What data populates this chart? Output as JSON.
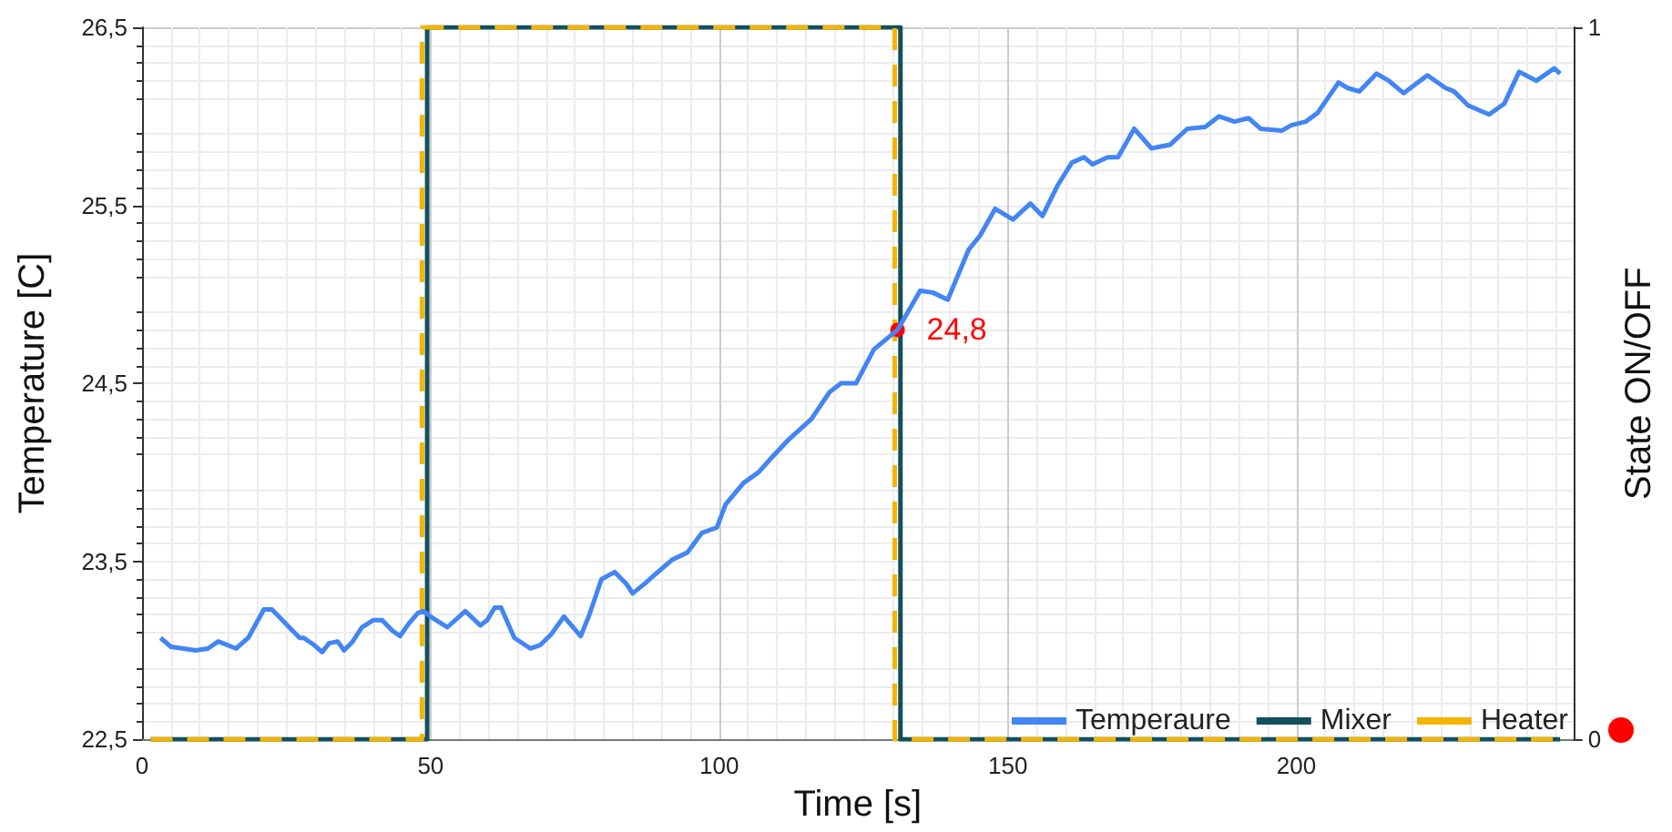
{
  "chart_data": {
    "type": "line",
    "xlabel": "Time [s]",
    "ylabel": "Temperature [C]",
    "y2label": "State ON/OFF",
    "xlim": [
      0,
      248
    ],
    "xticks": [
      0,
      50,
      100,
      150,
      200
    ],
    "ylim": [
      22.5,
      26.5
    ],
    "yticks": [
      {
        "value": 22.5,
        "label": "22,5"
      },
      {
        "value": 23.5,
        "label": "23,5"
      },
      {
        "value": 24.5,
        "label": "24,5"
      },
      {
        "value": 25.5,
        "label": "25,5"
      },
      {
        "value": 26.5,
        "label": "26,5"
      }
    ],
    "y2lim": [
      0,
      1
    ],
    "y2ticks": [
      0,
      1
    ],
    "grid": true,
    "legend": "bottom right",
    "marker": "none",
    "annotations": [
      {
        "text": "24,8",
        "x": 130.9,
        "y": 24.8
      }
    ],
    "series": [
      {
        "name": "Temperaure",
        "color": "#4285f4",
        "line_style": "solid",
        "x": [
          3.2,
          5.0,
          9.3,
          11.4,
          13.2,
          16.3,
          18.4,
          21.1,
          22.5,
          27.3,
          28.0,
          29.8,
          31.2,
          32.4,
          33.9,
          35.0,
          36.5,
          38.1,
          40.1,
          41.6,
          43.4,
          44.7,
          46.2,
          47.8,
          48.8,
          50.4,
          52.9,
          56.0,
          58.6,
          59.8,
          61.1,
          62.2,
          64.5,
          67.3,
          69.0,
          70.9,
          73.1,
          76.0,
          77.5,
          79.6,
          81.9,
          84.0,
          85.0,
          87.3,
          88.3,
          91.9,
          94.5,
          97.0,
          99.6,
          101.1,
          104.2,
          106.8,
          109.3,
          111.9,
          116.0,
          119.1,
          121.1,
          123.7,
          126.8,
          130.9,
          134.8,
          137.0,
          139.6,
          143.2,
          145.2,
          147.8,
          150.9,
          153.9,
          156.0,
          158.6,
          161.1,
          163.2,
          164.7,
          167.3,
          169.1,
          171.9,
          174.9,
          178.1,
          181.1,
          184.2,
          186.6,
          189.3,
          191.7,
          193.8,
          197.5,
          199.1,
          201.6,
          203.7,
          207.3,
          208.8,
          210.9,
          213.9,
          216.0,
          218.6,
          222.7,
          225.8,
          227.3,
          229.8,
          233.4,
          236.0,
          238.6,
          241.6,
          244.7,
          245.7
        ],
        "values": [
          23.07,
          23.02,
          23.0,
          23.01,
          23.05,
          23.01,
          23.07,
          23.23,
          23.23,
          23.07,
          23.07,
          23.03,
          22.99,
          23.04,
          23.05,
          23.0,
          23.05,
          23.13,
          23.17,
          23.17,
          23.11,
          23.08,
          23.15,
          23.21,
          23.22,
          23.18,
          23.13,
          23.22,
          23.14,
          23.17,
          23.24,
          23.24,
          23.07,
          23.01,
          23.03,
          23.09,
          23.19,
          23.08,
          23.2,
          23.4,
          23.44,
          23.37,
          23.32,
          23.38,
          23.41,
          23.51,
          23.55,
          23.66,
          23.69,
          23.82,
          23.94,
          24.0,
          24.09,
          24.18,
          24.3,
          24.45,
          24.5,
          24.5,
          24.69,
          24.8,
          25.02,
          25.01,
          24.97,
          25.25,
          25.33,
          25.48,
          25.42,
          25.51,
          25.44,
          25.61,
          25.74,
          25.77,
          25.73,
          25.77,
          25.77,
          25.93,
          25.82,
          25.84,
          25.93,
          25.94,
          26.0,
          25.97,
          25.99,
          25.93,
          25.92,
          25.95,
          25.97,
          26.02,
          26.19,
          26.16,
          26.14,
          26.24,
          26.2,
          26.13,
          26.23,
          26.16,
          26.14,
          26.06,
          26.01,
          26.07,
          26.25,
          26.2,
          26.27,
          26.24
        ]
      },
      {
        "name": "Mixer",
        "type": "step",
        "axis": "y2",
        "color": "#134f5c",
        "line_style": "solid",
        "x": [
          1.5,
          49.4,
          131.4,
          245.7
        ],
        "values": [
          0,
          1,
          0,
          0
        ]
      },
      {
        "name": "Heater",
        "type": "step",
        "axis": "y2",
        "color": "#f4b400",
        "line_style": "dashed",
        "x": [
          1.5,
          48.5,
          130.4,
          245.7
        ],
        "values": [
          0,
          1,
          0,
          0
        ]
      }
    ]
  }
}
